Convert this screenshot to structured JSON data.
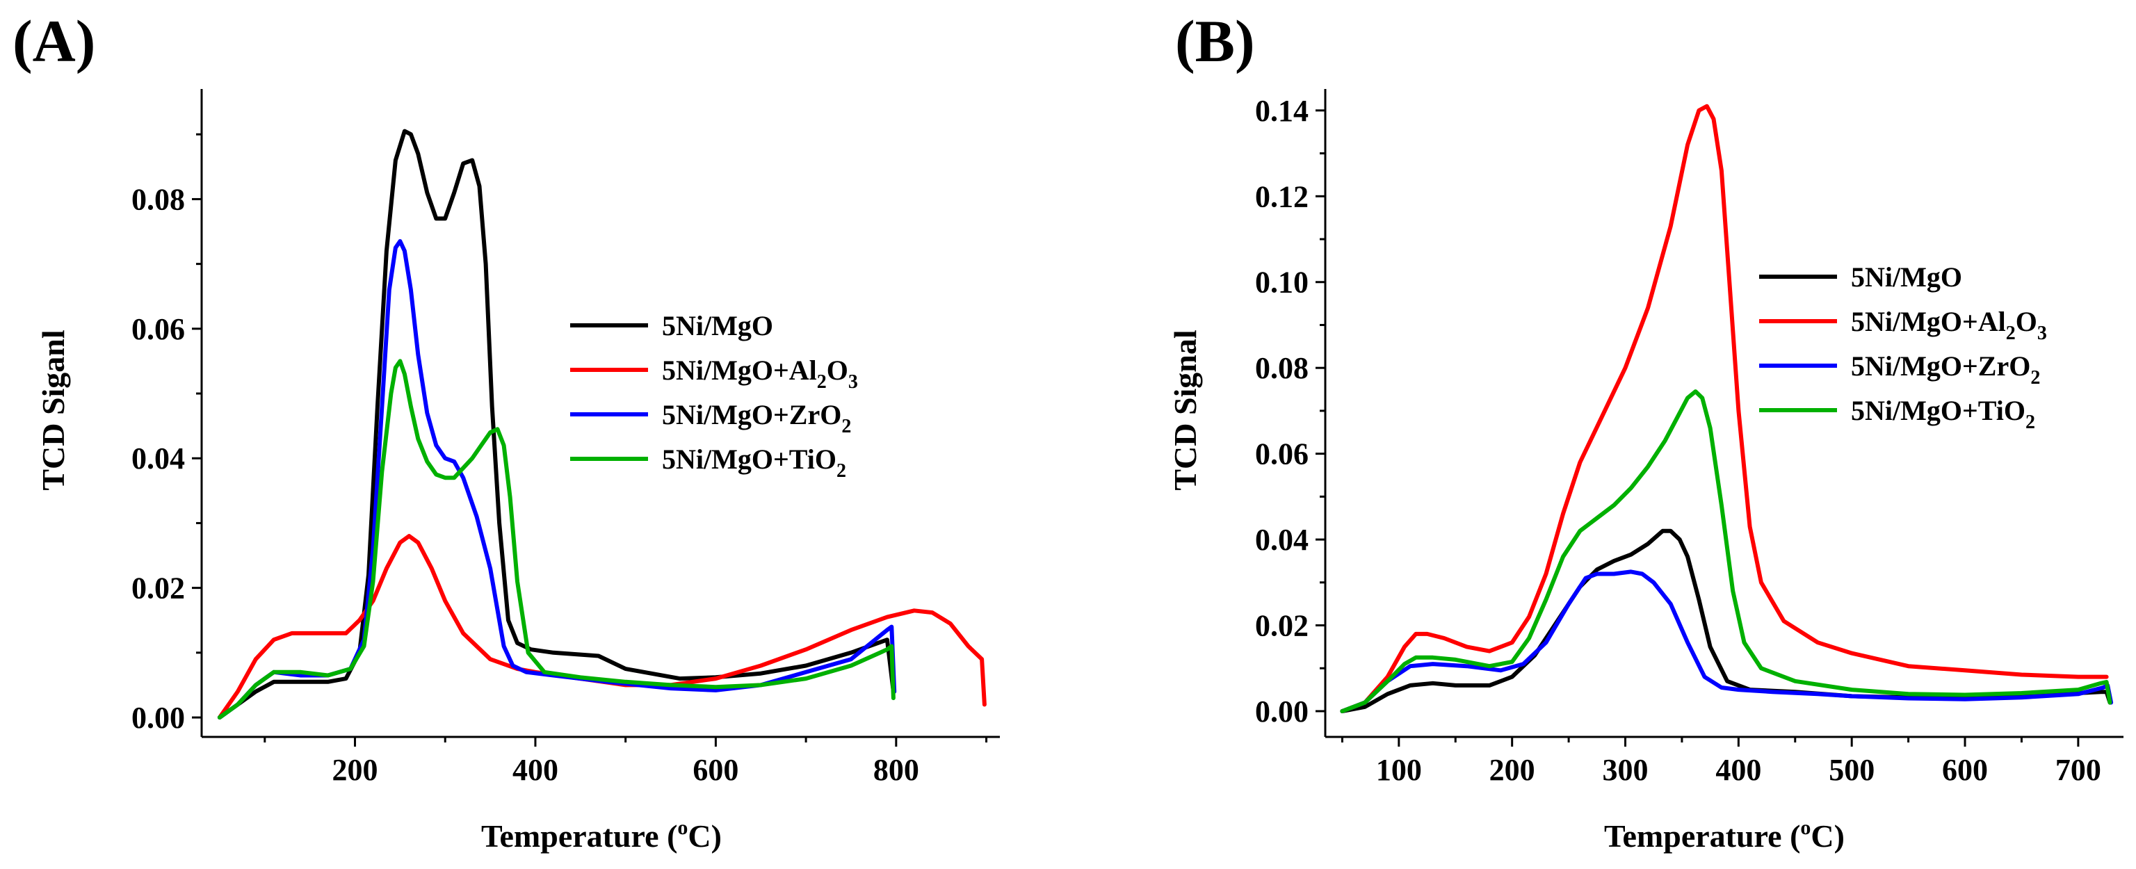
{
  "chart_data": [
    {
      "panel": "(A)",
      "type": "line",
      "xlabel": "Temperature (oC)",
      "xlabel_main": "Temperature (",
      "xlabel_sup": "o",
      "xlabel_end": "C)",
      "ylabel": "TCD Siganl",
      "xlim": [
        30,
        915
      ],
      "ylim": [
        -0.003,
        0.097
      ],
      "xticks": [
        200,
        400,
        600,
        800
      ],
      "xtick_labels": [
        "200",
        "400",
        "600",
        "800"
      ],
      "yticks": [
        0.0,
        0.02,
        0.04,
        0.06,
        0.08
      ],
      "ytick_labels": [
        "0.00",
        "0.02",
        "0.04",
        "0.06",
        "0.08"
      ],
      "legend_position": "center-right",
      "series": [
        {
          "name": "5Ni/MgO",
          "name_main": "5Ni/MgO",
          "name_sub": "",
          "name_end": "",
          "color": "#000000",
          "x": [
            50,
            70,
            90,
            110,
            140,
            170,
            190,
            205,
            215,
            225,
            235,
            245,
            255,
            262,
            270,
            280,
            290,
            300,
            310,
            320,
            330,
            338,
            345,
            352,
            360,
            370,
            380,
            395,
            420,
            470,
            500,
            560,
            600,
            650,
            700,
            750,
            790,
            797
          ],
          "y": [
            0.0,
            0.002,
            0.004,
            0.0055,
            0.0055,
            0.0055,
            0.006,
            0.01,
            0.022,
            0.048,
            0.072,
            0.086,
            0.0905,
            0.09,
            0.087,
            0.081,
            0.077,
            0.077,
            0.081,
            0.0855,
            0.086,
            0.082,
            0.07,
            0.048,
            0.03,
            0.015,
            0.0115,
            0.0105,
            0.01,
            0.0095,
            0.0075,
            0.006,
            0.0062,
            0.0068,
            0.008,
            0.01,
            0.012,
            0.004
          ]
        },
        {
          "name": "5Ni/MgO+Al2O3",
          "name_main": "5Ni/MgO+Al",
          "name_sub": "2",
          "name_end": "O3",
          "color": "#ff0000",
          "x": [
            50,
            70,
            90,
            110,
            130,
            150,
            170,
            190,
            205,
            220,
            235,
            250,
            260,
            270,
            285,
            300,
            320,
            350,
            380,
            400,
            450,
            500,
            550,
            600,
            650,
            700,
            750,
            790,
            820,
            840,
            860,
            880,
            895,
            898
          ],
          "y": [
            0.0,
            0.004,
            0.009,
            0.012,
            0.013,
            0.013,
            0.013,
            0.013,
            0.015,
            0.018,
            0.023,
            0.027,
            0.028,
            0.027,
            0.023,
            0.018,
            0.013,
            0.009,
            0.0075,
            0.007,
            0.006,
            0.005,
            0.005,
            0.006,
            0.008,
            0.0105,
            0.0135,
            0.0155,
            0.0165,
            0.0162,
            0.0145,
            0.011,
            0.009,
            0.002
          ]
        },
        {
          "name": "5Ni/MgO+ZrO2",
          "name_main": "5Ni/MgO+ZrO",
          "name_sub": "2",
          "name_end": "",
          "color": "#0000ff",
          "x": [
            50,
            70,
            90,
            110,
            140,
            170,
            195,
            210,
            220,
            230,
            238,
            245,
            250,
            255,
            262,
            270,
            280,
            290,
            300,
            310,
            320,
            335,
            350,
            365,
            375,
            390,
            420,
            480,
            550,
            600,
            650,
            700,
            750,
            790,
            795,
            798
          ],
          "y": [
            0.0,
            0.002,
            0.005,
            0.007,
            0.0065,
            0.0065,
            0.0075,
            0.012,
            0.026,
            0.048,
            0.066,
            0.0725,
            0.0735,
            0.072,
            0.066,
            0.056,
            0.047,
            0.042,
            0.04,
            0.0395,
            0.037,
            0.031,
            0.023,
            0.011,
            0.008,
            0.007,
            0.0065,
            0.0055,
            0.0045,
            0.0042,
            0.005,
            0.007,
            0.009,
            0.0135,
            0.014,
            0.004
          ]
        },
        {
          "name": "5Ni/MgO+TiO2",
          "name_main": "5Ni/MgO+TiO",
          "name_sub": "2",
          "name_end": "",
          "color": "#00b000",
          "x": [
            50,
            70,
            90,
            110,
            140,
            170,
            195,
            210,
            220,
            230,
            240,
            245,
            250,
            255,
            262,
            270,
            280,
            290,
            300,
            310,
            320,
            330,
            340,
            350,
            358,
            365,
            372,
            380,
            392,
            410,
            450,
            500,
            550,
            600,
            650,
            700,
            750,
            790,
            795,
            797
          ],
          "y": [
            0.0,
            0.002,
            0.005,
            0.007,
            0.007,
            0.0065,
            0.0075,
            0.011,
            0.021,
            0.038,
            0.05,
            0.054,
            0.055,
            0.053,
            0.048,
            0.043,
            0.0395,
            0.0375,
            0.037,
            0.037,
            0.0385,
            0.04,
            0.042,
            0.044,
            0.0445,
            0.042,
            0.034,
            0.021,
            0.01,
            0.007,
            0.0062,
            0.0055,
            0.005,
            0.0047,
            0.005,
            0.006,
            0.008,
            0.0105,
            0.011,
            0.003
          ]
        }
      ]
    },
    {
      "panel": "(B)",
      "type": "line",
      "xlabel": "Temperature (oC)",
      "xlabel_main": "Temperature (",
      "xlabel_sup": "o",
      "xlabel_end": "C)",
      "ylabel": "TCD Signal",
      "xlim": [
        35,
        740
      ],
      "ylim": [
        -0.006,
        0.145
      ],
      "xticks": [
        100,
        200,
        300,
        400,
        500,
        600,
        700
      ],
      "xtick_labels": [
        "100",
        "200",
        "300",
        "400",
        "500",
        "600",
        "700"
      ],
      "yticks": [
        0.0,
        0.02,
        0.04,
        0.06,
        0.08,
        0.1,
        0.12,
        0.14
      ],
      "ytick_labels": [
        "0.00",
        "0.02",
        "0.04",
        "0.06",
        "0.08",
        "0.10",
        "0.12",
        "0.14"
      ],
      "legend_position": "center-right",
      "series": [
        {
          "name": "5Ni/MgO",
          "name_main": "5Ni/MgO",
          "name_sub": "",
          "name_end": "",
          "color": "#000000",
          "x": [
            50,
            70,
            90,
            110,
            130,
            150,
            180,
            200,
            220,
            240,
            260,
            275,
            290,
            305,
            320,
            333,
            340,
            348,
            355,
            365,
            375,
            390,
            410,
            450,
            500,
            550,
            600,
            650,
            700,
            720,
            725,
            728
          ],
          "y": [
            0.0,
            0.001,
            0.004,
            0.006,
            0.0065,
            0.006,
            0.006,
            0.008,
            0.013,
            0.021,
            0.029,
            0.033,
            0.035,
            0.0365,
            0.039,
            0.042,
            0.042,
            0.04,
            0.036,
            0.026,
            0.015,
            0.007,
            0.005,
            0.0045,
            0.0035,
            0.0032,
            0.0032,
            0.0035,
            0.0042,
            0.0045,
            0.0045,
            0.002
          ]
        },
        {
          "name": "5Ni/MgO+Al2O3",
          "name_main": "5Ni/MgO+Al",
          "name_sub": "2",
          "name_end": "O3",
          "color": "#ff0000",
          "x": [
            50,
            70,
            90,
            105,
            115,
            125,
            140,
            160,
            180,
            200,
            215,
            230,
            245,
            260,
            280,
            300,
            320,
            340,
            355,
            365,
            372,
            378,
            385,
            392,
            400,
            410,
            420,
            440,
            470,
            500,
            550,
            600,
            650,
            700,
            725
          ],
          "y": [
            0.0,
            0.002,
            0.008,
            0.015,
            0.018,
            0.018,
            0.017,
            0.015,
            0.014,
            0.016,
            0.022,
            0.032,
            0.046,
            0.058,
            0.069,
            0.08,
            0.094,
            0.113,
            0.132,
            0.14,
            0.141,
            0.138,
            0.126,
            0.1,
            0.07,
            0.043,
            0.03,
            0.021,
            0.016,
            0.0135,
            0.0105,
            0.0095,
            0.0085,
            0.008,
            0.008
          ]
        },
        {
          "name": "5Ni/MgO+ZrO2",
          "name_main": "5Ni/MgO+ZrO",
          "name_sub": "2",
          "name_end": "",
          "color": "#0000ff",
          "x": [
            50,
            70,
            90,
            110,
            130,
            160,
            190,
            210,
            230,
            250,
            265,
            275,
            290,
            305,
            315,
            325,
            340,
            355,
            370,
            385,
            400,
            430,
            470,
            500,
            550,
            600,
            650,
            700,
            722,
            726,
            729
          ],
          "y": [
            0.0,
            0.002,
            0.007,
            0.0105,
            0.011,
            0.0105,
            0.0095,
            0.011,
            0.016,
            0.025,
            0.031,
            0.032,
            0.032,
            0.0325,
            0.032,
            0.03,
            0.025,
            0.016,
            0.008,
            0.0055,
            0.005,
            0.0045,
            0.004,
            0.0035,
            0.003,
            0.0028,
            0.0032,
            0.004,
            0.0055,
            0.006,
            0.002
          ]
        },
        {
          "name": "5Ni/MgO+TiO2",
          "name_main": "5Ni/MgO+TiO",
          "name_sub": "2",
          "name_end": "",
          "color": "#00b000",
          "x": [
            50,
            70,
            90,
            105,
            115,
            130,
            150,
            180,
            200,
            215,
            230,
            245,
            260,
            275,
            290,
            305,
            320,
            335,
            345,
            355,
            362,
            368,
            375,
            385,
            395,
            405,
            420,
            450,
            500,
            550,
            600,
            650,
            700,
            720,
            725,
            728
          ],
          "y": [
            0.0,
            0.002,
            0.007,
            0.011,
            0.0125,
            0.0125,
            0.012,
            0.0105,
            0.0115,
            0.017,
            0.026,
            0.036,
            0.042,
            0.045,
            0.048,
            0.052,
            0.057,
            0.063,
            0.068,
            0.073,
            0.0745,
            0.073,
            0.066,
            0.048,
            0.028,
            0.016,
            0.01,
            0.007,
            0.005,
            0.004,
            0.0038,
            0.0042,
            0.005,
            0.0065,
            0.0068,
            0.002
          ]
        }
      ]
    }
  ]
}
